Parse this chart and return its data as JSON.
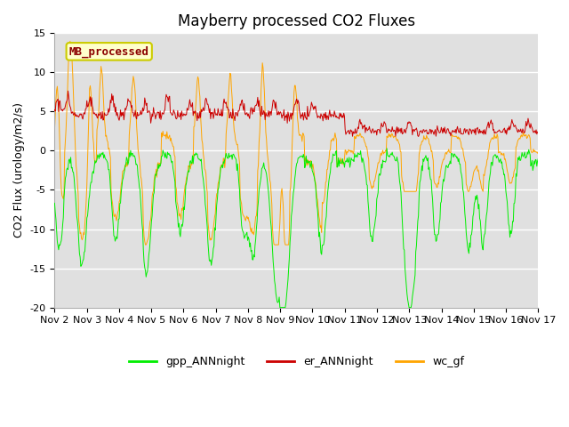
{
  "title": "Mayberry processed CO2 Fluxes",
  "ylabel": "CO2 Flux (urology/m2/s)",
  "n_days": 15,
  "ylim": [
    -20,
    15
  ],
  "yticks": [
    -20,
    -15,
    -10,
    -5,
    0,
    5,
    10,
    15
  ],
  "x_tick_labels": [
    "Nov 2",
    "Nov 3",
    "Nov 4",
    "Nov 5",
    "Nov 6",
    "Nov 7",
    "Nov 8",
    "Nov 9",
    "Nov 10",
    "Nov 11",
    "Nov 12",
    "Nov 13",
    "Nov 14",
    "Nov 15",
    "Nov 16",
    "Nov 17"
  ],
  "annotation_text": "MB_processed",
  "annotation_color": "#8B0000",
  "annotation_bg": "#FFFFCC",
  "annotation_edge": "#CCCC00",
  "bg_color": "#E0E0E0",
  "grid_color": "#FFFFFF",
  "line_colors": {
    "gpp": "#00EE00",
    "er": "#CC0000",
    "wc": "#FFA500"
  },
  "legend_labels": [
    "gpp_ANNnight",
    "er_ANNnight",
    "wc_gf"
  ],
  "legend_colors": [
    "#00EE00",
    "#CC0000",
    "#FFA500"
  ],
  "title_fontsize": 12,
  "label_fontsize": 9,
  "tick_fontsize": 8
}
